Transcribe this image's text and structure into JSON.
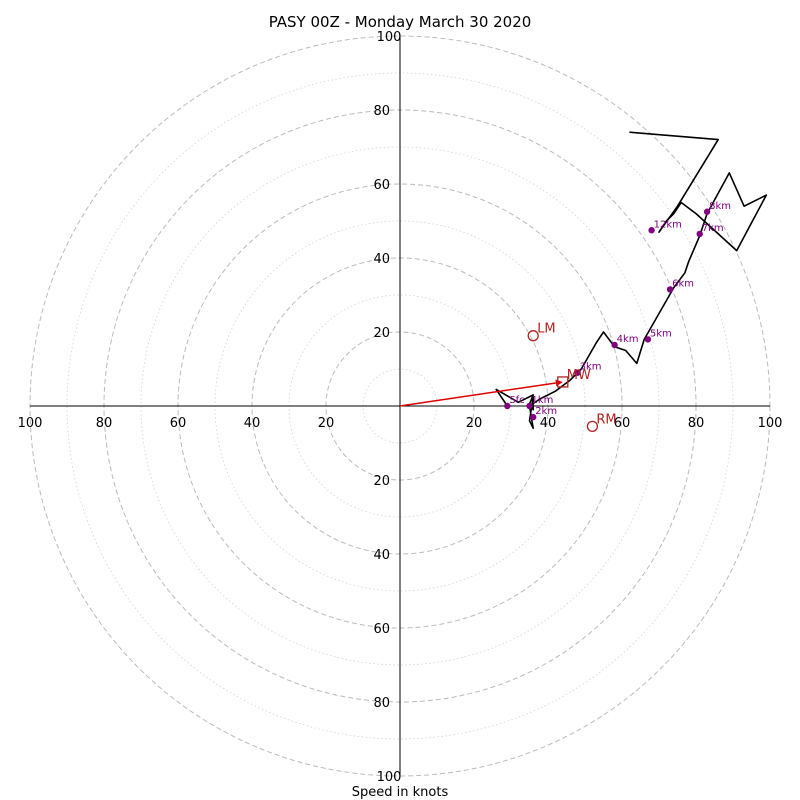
{
  "chart_data": {
    "type": "hodograph",
    "title": "PASY 00Z - Monday March 30 2020",
    "xlabel": "Speed in knots",
    "units": "knots",
    "range_max": 100,
    "ring_major_step": 20,
    "ring_minor_step": 10,
    "axis_tick_labels": [
      "100",
      "80",
      "60",
      "40",
      "20",
      "20",
      "40",
      "60",
      "80",
      "100"
    ],
    "colors": {
      "hodograph": "#000000",
      "height_markers": "#800080",
      "motion_markers": "#b22222",
      "mean_wind_vector": "#e00000",
      "grid": "#bbbbbb"
    },
    "hodograph_uv": [
      [
        29,
        0
      ],
      [
        26,
        4.5
      ],
      [
        32,
        1
      ],
      [
        36,
        3
      ],
      [
        35,
        0.5
      ],
      [
        36,
        -1
      ],
      [
        36,
        2.5
      ],
      [
        35,
        -4
      ],
      [
        36,
        -6
      ],
      [
        35,
        0
      ],
      [
        38,
        2
      ],
      [
        42,
        4
      ],
      [
        46,
        7
      ],
      [
        49,
        10
      ],
      [
        53,
        17
      ],
      [
        55,
        20
      ],
      [
        58,
        16
      ],
      [
        61,
        15
      ],
      [
        64,
        11.5
      ],
      [
        66,
        18
      ],
      [
        70,
        25
      ],
      [
        74,
        32
      ],
      [
        77,
        36
      ],
      [
        78,
        39
      ],
      [
        81,
        46
      ],
      [
        83,
        52
      ],
      [
        89,
        63
      ],
      [
        93,
        54
      ],
      [
        99,
        57
      ],
      [
        91,
        42
      ],
      [
        80,
        52
      ],
      [
        76,
        55
      ],
      [
        74,
        52
      ],
      [
        72,
        50
      ],
      [
        70,
        47
      ],
      [
        75,
        54
      ],
      [
        86,
        72
      ],
      [
        62,
        74
      ]
    ],
    "height_markers": [
      {
        "label": "Sfc",
        "u": 29,
        "v": 0
      },
      {
        "label": "1km",
        "u": 35,
        "v": 0
      },
      {
        "label": "2km",
        "u": 36,
        "v": -3
      },
      {
        "label": "3km",
        "u": 48,
        "v": 9
      },
      {
        "label": "4km",
        "u": 58,
        "v": 16.5
      },
      {
        "label": "5km",
        "u": 67,
        "v": 18
      },
      {
        "label": "6km",
        "u": 73,
        "v": 31.5
      },
      {
        "label": "7km",
        "u": 81,
        "v": 46.5
      },
      {
        "label": "8km",
        "u": 83,
        "v": 52.5
      },
      {
        "label": "12km",
        "u": 68,
        "v": 47.5
      }
    ],
    "storm_motion": [
      {
        "label": "LM",
        "u": 36,
        "v": 19,
        "marker": "circle"
      },
      {
        "label": "RM",
        "u": 52,
        "v": -5.5,
        "marker": "circle"
      },
      {
        "label": "MW",
        "u": 44,
        "v": 6.5,
        "marker": "square"
      }
    ],
    "mean_wind_vector": {
      "u": 44,
      "v": 6.5
    }
  }
}
